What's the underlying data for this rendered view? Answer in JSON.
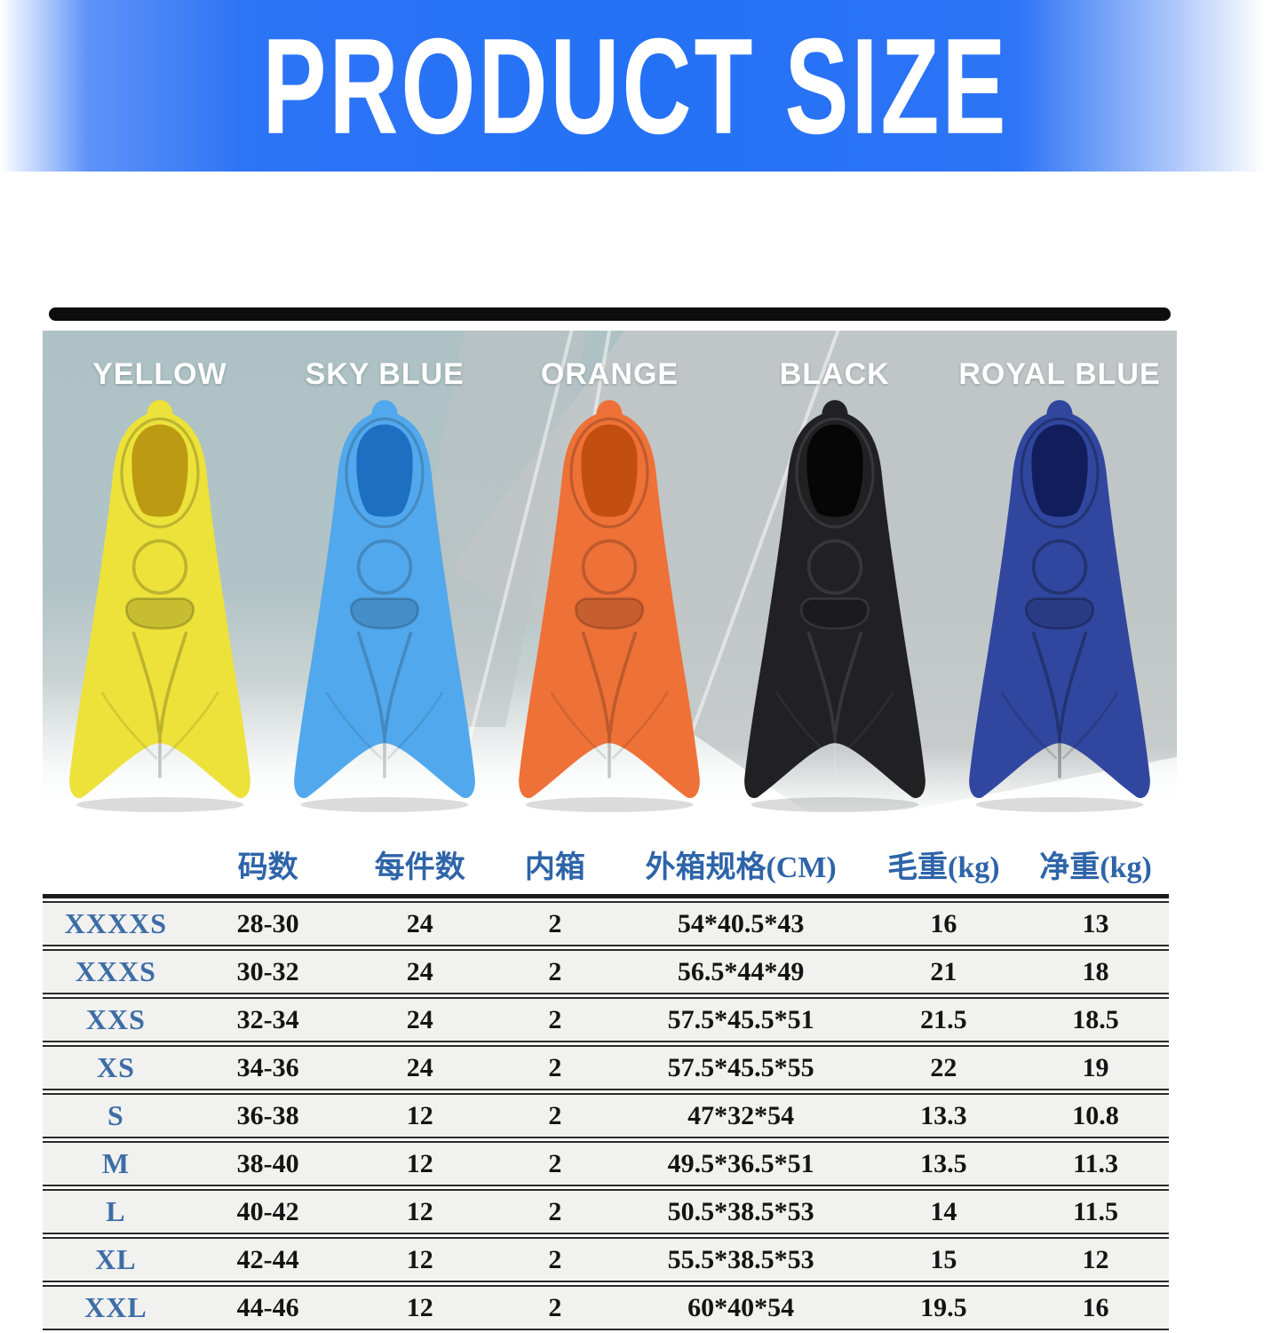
{
  "banner": {
    "title": "PRODUCT SIZE",
    "bg_blue": "#2d74f6",
    "text_color": "#ffffff"
  },
  "product_photo": {
    "fins": [
      {
        "label": "YELLOW",
        "body": "#ece23a",
        "dark": "#bc9b13",
        "line": "rgba(0,0,0,0.20)"
      },
      {
        "label": "SKY BLUE",
        "body": "#52a8ec",
        "dark": "#1e6fc2",
        "line": "rgba(0,0,0,0.18)"
      },
      {
        "label": "ORANGE",
        "body": "#ee7138",
        "dark": "#c24e12",
        "line": "rgba(0,0,0,0.20)"
      },
      {
        "label": "BLACK",
        "body": "#212123",
        "dark": "#060607",
        "line": "rgba(255,255,255,0.10)"
      },
      {
        "label": "ROYAL BLUE",
        "body": "#31479f",
        "dark": "#121e5c",
        "line": "rgba(0,0,0,0.28)"
      }
    ]
  },
  "size_table": {
    "header_color": "#2e64a8",
    "size_label_color": "#3d6da6",
    "headers": {
      "size": "",
      "range": "码数",
      "pcs": "每件数",
      "inner": "内箱",
      "outer": "外箱规格(CM)",
      "gross": "毛重(kg)",
      "net": "净重(kg)"
    },
    "rows": [
      {
        "size": "XXXXS",
        "range": "28-30",
        "pcs": "24",
        "inner": "2",
        "outer": "54*40.5*43",
        "gross": "16",
        "net": "13"
      },
      {
        "size": "XXXS",
        "range": "30-32",
        "pcs": "24",
        "inner": "2",
        "outer": "56.5*44*49",
        "gross": "21",
        "net": "18"
      },
      {
        "size": "XXS",
        "range": "32-34",
        "pcs": "24",
        "inner": "2",
        "outer": "57.5*45.5*51",
        "gross": "21.5",
        "net": "18.5"
      },
      {
        "size": "XS",
        "range": "34-36",
        "pcs": "24",
        "inner": "2",
        "outer": "57.5*45.5*55",
        "gross": "22",
        "net": "19"
      },
      {
        "size": "S",
        "range": "36-38",
        "pcs": "12",
        "inner": "2",
        "outer": "47*32*54",
        "gross": "13.3",
        "net": "10.8"
      },
      {
        "size": "M",
        "range": "38-40",
        "pcs": "12",
        "inner": "2",
        "outer": "49.5*36.5*51",
        "gross": "13.5",
        "net": "11.3"
      },
      {
        "size": "L",
        "range": "40-42",
        "pcs": "12",
        "inner": "2",
        "outer": "50.5*38.5*53",
        "gross": "14",
        "net": "11.5"
      },
      {
        "size": "XL",
        "range": "42-44",
        "pcs": "12",
        "inner": "2",
        "outer": "55.5*38.5*53",
        "gross": "15",
        "net": "12"
      },
      {
        "size": "XXL",
        "range": "44-46",
        "pcs": "12",
        "inner": "2",
        "outer": "60*40*54",
        "gross": "19.5",
        "net": "16"
      }
    ]
  }
}
